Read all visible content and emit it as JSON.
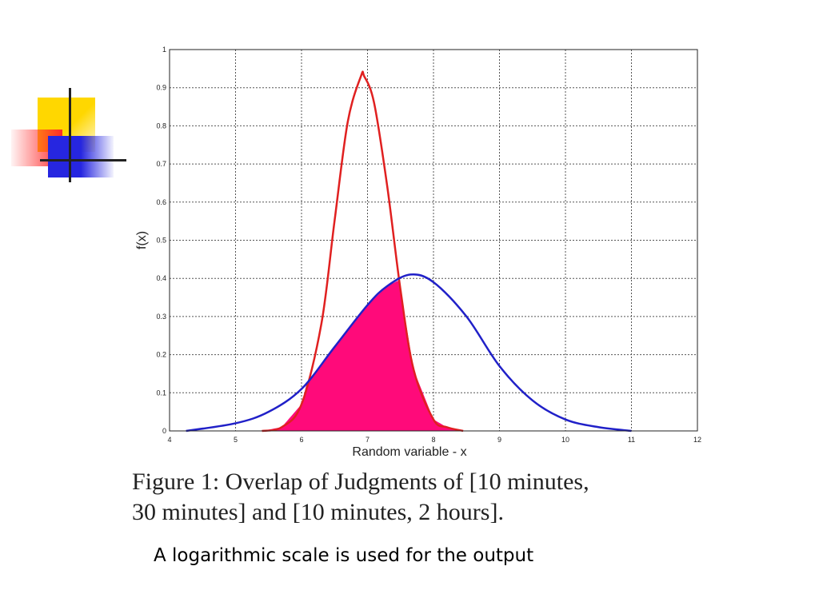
{
  "logo": {
    "icon": "cross-squares-logo-icon"
  },
  "chart_data": {
    "type": "line",
    "xlabel": "Random variable - x",
    "ylabel": "f(x)",
    "xlim": [
      4,
      12
    ],
    "ylim": [
      0,
      1
    ],
    "x_ticks": [
      4,
      5,
      6,
      7,
      8,
      9,
      10,
      11,
      12
    ],
    "y_ticks": [
      0,
      0.1,
      0.2,
      0.3,
      0.4,
      0.5,
      0.6,
      0.7,
      0.8,
      0.9,
      1
    ],
    "grid": true,
    "legend": "none",
    "series": [
      {
        "color": "#e02020",
        "x": [
          5.4,
          5.7,
          6.0,
          6.3,
          6.5,
          6.7,
          6.9,
          6.95,
          7.1,
          7.3,
          7.5,
          7.7,
          8.0,
          8.2,
          8.45
        ],
        "y": [
          0.0,
          0.01,
          0.07,
          0.28,
          0.55,
          0.81,
          0.93,
          0.93,
          0.86,
          0.64,
          0.37,
          0.16,
          0.03,
          0.01,
          0.0
        ]
      },
      {
        "color": "#2020c8",
        "x": [
          4.25,
          5.0,
          5.5,
          6.0,
          6.5,
          7.0,
          7.3,
          7.65,
          8.0,
          8.5,
          9.0,
          9.5,
          10.0,
          10.5,
          11.0
        ],
        "y": [
          0.0,
          0.02,
          0.05,
          0.11,
          0.22,
          0.33,
          0.38,
          0.41,
          0.39,
          0.3,
          0.17,
          0.08,
          0.03,
          0.01,
          0.0
        ]
      }
    ],
    "overlap_fill_color": "#ff0a7a"
  },
  "caption": {
    "line1": "Figure 1: Overlap of Judgments of [10 minutes,",
    "line2": "30 minutes] and [10 minutes, 2 hours]."
  },
  "note": "A logarithmic scale is used for the output"
}
